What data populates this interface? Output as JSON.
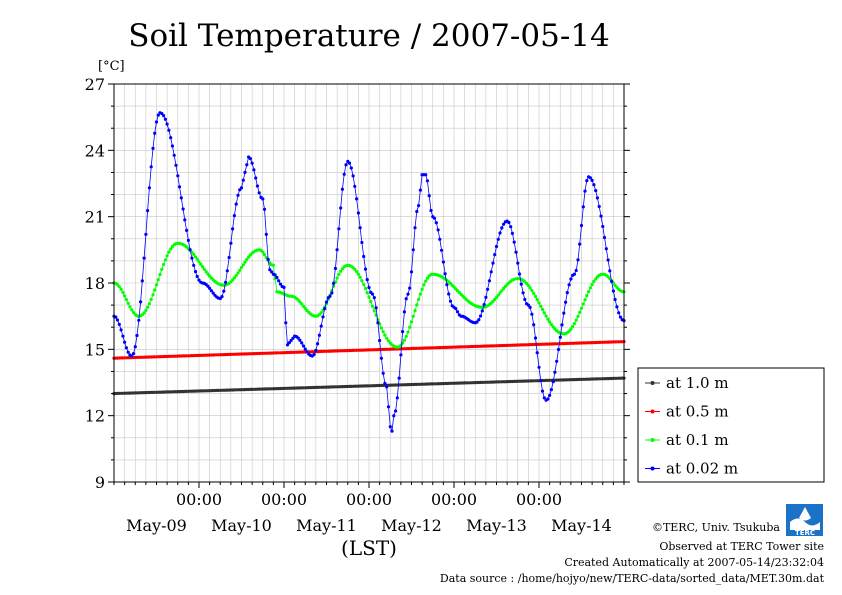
{
  "chart_data": {
    "type": "line",
    "title": "Soil Temperature / 2007-05-14",
    "ylabel": "[°C]",
    "xlabel": "(LST)",
    "ylim": [
      9,
      27
    ],
    "yticks": [
      9,
      12,
      15,
      18,
      21,
      24,
      27
    ],
    "xlim_hours": [
      0,
      144
    ],
    "x_tick_hours": [
      24,
      48,
      72,
      96,
      120
    ],
    "x_tick_label": "00:00",
    "day_labels": [
      "May-09",
      "May-10",
      "May-11",
      "May-12",
      "May-13",
      "May-14"
    ],
    "grid": true,
    "legend_position": "right",
    "series": [
      {
        "name": "at 1.0 m",
        "color": "#333333",
        "start": 13.0,
        "end": 13.7,
        "amplitude": 0,
        "phase_hour": 0
      },
      {
        "name": "at 0.5 m",
        "color": "#ff0000",
        "start": 14.6,
        "end": 15.35,
        "amplitude": 0,
        "phase_hour": 0
      },
      {
        "name": "at 0.1 m",
        "color": "#00ff00",
        "keypoints": [
          [
            0,
            18.0
          ],
          [
            7,
            16.5
          ],
          [
            18,
            19.8
          ],
          [
            31,
            17.9
          ],
          [
            41,
            19.5
          ],
          [
            45,
            18.8
          ],
          [
            46,
            17.6
          ],
          [
            50,
            17.4
          ],
          [
            57,
            16.5
          ],
          [
            66,
            18.8
          ],
          [
            80,
            15.1
          ],
          [
            90,
            18.4
          ],
          [
            104,
            16.9
          ],
          [
            114,
            18.2
          ],
          [
            127,
            15.7
          ],
          [
            138,
            18.4
          ],
          [
            144,
            17.6
          ]
        ]
      },
      {
        "name": "at 0.02 m",
        "color": "#0000ff",
        "keypoints": [
          [
            0,
            16.5
          ],
          [
            5,
            14.7
          ],
          [
            13,
            25.7
          ],
          [
            25,
            18.0
          ],
          [
            30,
            17.3
          ],
          [
            36,
            22.3
          ],
          [
            37,
            23.0
          ],
          [
            38,
            23.7
          ],
          [
            42,
            21.8
          ],
          [
            44,
            18.6
          ],
          [
            45,
            18.4
          ],
          [
            48,
            17.8
          ],
          [
            48.5,
            16.2
          ],
          [
            49,
            15.2
          ],
          [
            50,
            15.4
          ],
          [
            51,
            15.6
          ],
          [
            56,
            14.7
          ],
          [
            61,
            17.4
          ],
          [
            66,
            23.5
          ],
          [
            73,
            17.5
          ],
          [
            77,
            13.3
          ],
          [
            78,
            11.5
          ],
          [
            78.5,
            11.3
          ],
          [
            79,
            12.0
          ],
          [
            83,
            17.5
          ],
          [
            86,
            21.5
          ],
          [
            87,
            22.9
          ],
          [
            88,
            22.9
          ],
          [
            90,
            21.0
          ],
          [
            96,
            16.9
          ],
          [
            98,
            16.5
          ],
          [
            102,
            16.2
          ],
          [
            111,
            20.8
          ],
          [
            117,
            17.0
          ],
          [
            122,
            12.7
          ],
          [
            130,
            18.4
          ],
          [
            134,
            22.8
          ],
          [
            144,
            16.3
          ]
        ]
      }
    ]
  },
  "credits": {
    "line1": "©TERC, Univ. Tsukuba",
    "line2": "Observed at TERC Tower site",
    "line3": "Created Automatically at 2007-05-14/23:32:04",
    "line4": "Data source : /home/hojyo/new/TERC-data/sorted_data/MET.30m.dat"
  },
  "logo_text": "TERC"
}
